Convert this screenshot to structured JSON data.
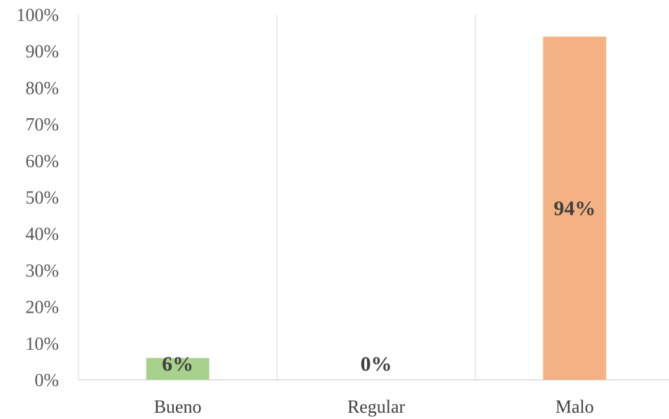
{
  "chart_data": {
    "type": "bar",
    "categories": [
      "Bueno",
      "Regular",
      "Malo"
    ],
    "values": [
      6,
      0,
      94
    ],
    "data_labels": [
      "6%",
      "0%",
      "94%"
    ],
    "bar_colors": [
      "#a9d18e",
      "#a9d18e",
      "#f4b183"
    ],
    "ylim": [
      0,
      100
    ],
    "yticks": [
      0,
      10,
      20,
      30,
      40,
      50,
      60,
      70,
      80,
      90,
      100
    ],
    "ytick_labels": [
      "0%",
      "10%",
      "20%",
      "30%",
      "40%",
      "50%",
      "60%",
      "70%",
      "80%",
      "90%",
      "100%"
    ],
    "grid": false,
    "legend": "none",
    "title": "",
    "xlabel": "",
    "ylabel": ""
  },
  "colors": {
    "axis_line": "#d9d9d9",
    "text": "#404040"
  }
}
